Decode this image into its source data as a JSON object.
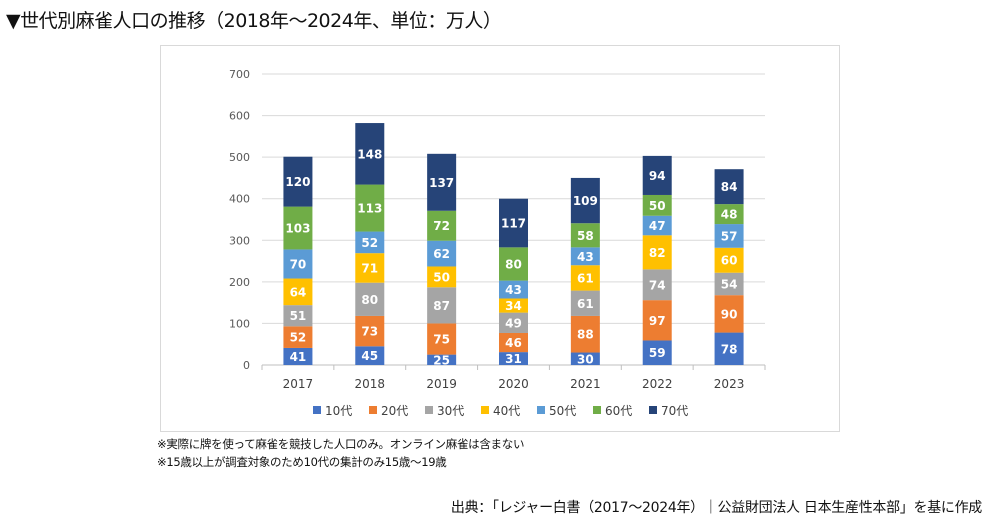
{
  "title": "▼世代別麻雀人口の推移（2018年～2024年、単位：万人）",
  "notes": [
    "※実際に牌を使って麻雀を競技した人口のみ。オンライン麻雀は含まない",
    "※15歳以上が調査対象のため10代の集計のみ15歳～19歳"
  ],
  "source": "出典：「レジャー白書（2017～2024年）｜公益財団法人 日本生産性本部」を基に作成",
  "chart_data": {
    "type": "bar",
    "stacked": true,
    "title": "",
    "xlabel": "",
    "ylabel": "",
    "ylim": [
      0,
      700
    ],
    "yticks": [
      0,
      100,
      200,
      300,
      400,
      500,
      600,
      700
    ],
    "grid": true,
    "legend_position": "bottom",
    "categories": [
      "2017",
      "2018",
      "2019",
      "2020",
      "2021",
      "2022",
      "2023"
    ],
    "series": [
      {
        "name": "10代",
        "color": "#4472c4",
        "values": [
          41,
          45,
          25,
          31,
          30,
          59,
          78
        ]
      },
      {
        "name": "20代",
        "color": "#ed7d31",
        "values": [
          52,
          73,
          75,
          46,
          88,
          97,
          90
        ]
      },
      {
        "name": "30代",
        "color": "#a5a5a5",
        "values": [
          51,
          80,
          87,
          49,
          61,
          74,
          54
        ]
      },
      {
        "name": "40代",
        "color": "#ffc000",
        "values": [
          64,
          71,
          50,
          34,
          61,
          82,
          60
        ]
      },
      {
        "name": "50代",
        "color": "#5b9bd5",
        "values": [
          70,
          52,
          62,
          43,
          43,
          47,
          57
        ]
      },
      {
        "name": "60代",
        "color": "#70ad47",
        "values": [
          103,
          113,
          72,
          80,
          58,
          50,
          48
        ]
      },
      {
        "name": "70代",
        "color": "#264478",
        "values": [
          120,
          148,
          137,
          117,
          109,
          94,
          84
        ]
      }
    ]
  }
}
